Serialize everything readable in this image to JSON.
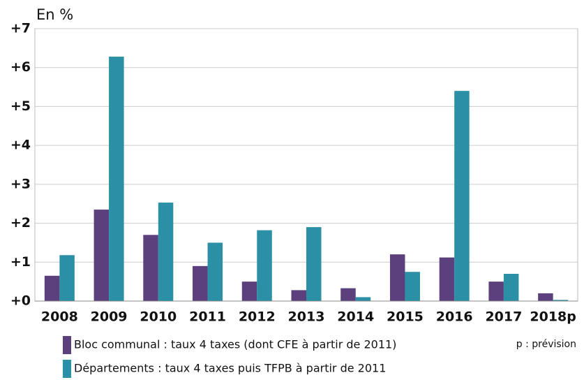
{
  "chart_data": {
    "type": "bar",
    "y_label": "En %",
    "note": "p : prévision",
    "categories": [
      "2008",
      "2009",
      "2010",
      "2011",
      "2012",
      "2013",
      "2014",
      "2015",
      "2016",
      "2017",
      "2018p"
    ],
    "series": [
      {
        "name": "Bloc communal : taux 4 taxes (dont CFE à partir de 2011)",
        "color": "#5c3f7d",
        "values": [
          0.65,
          2.35,
          1.7,
          0.9,
          0.5,
          0.28,
          0.33,
          1.2,
          1.12,
          0.5,
          0.2
        ]
      },
      {
        "name": "Départements : taux 4 taxes puis TFPB à partir de 2011",
        "color": "#2b8fa6",
        "values": [
          1.18,
          6.28,
          2.53,
          1.5,
          1.82,
          1.9,
          0.1,
          0.75,
          5.4,
          0.7,
          0.03
        ]
      }
    ],
    "ylim": [
      0,
      7
    ],
    "yticks": [
      {
        "value": 0,
        "label": "+0"
      },
      {
        "value": 1,
        "label": "+1"
      },
      {
        "value": 2,
        "label": "+2"
      },
      {
        "value": 3,
        "label": "+3"
      },
      {
        "value": 4,
        "label": "+4"
      },
      {
        "value": 5,
        "label": "+5"
      },
      {
        "value": 6,
        "label": "+6"
      },
      {
        "value": 7,
        "label": "+7"
      }
    ],
    "grid": true
  }
}
